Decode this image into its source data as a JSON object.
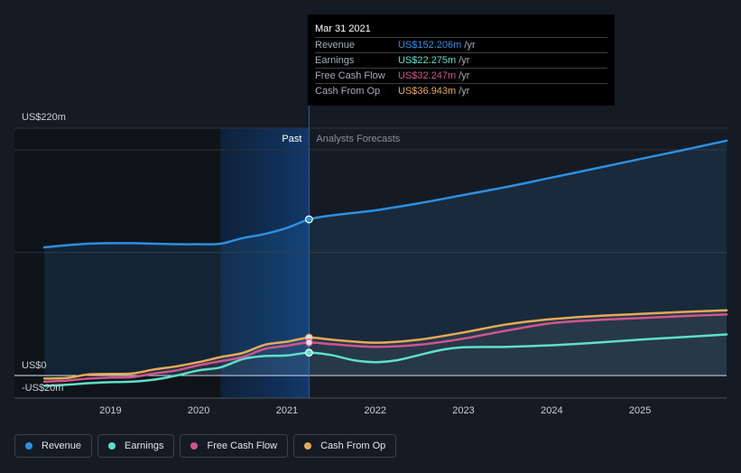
{
  "tooltip": {
    "date": "Mar 31 2021",
    "rows": [
      {
        "label": "Revenue",
        "value": "US$152.206m",
        "unit": "/yr",
        "color": "#2e8fe0"
      },
      {
        "label": "Earnings",
        "value": "US$22.275m",
        "unit": "/yr",
        "color": "#5fe0c8"
      },
      {
        "label": "Free Cash Flow",
        "value": "US$32.247m",
        "unit": "/yr",
        "color": "#d0558c"
      },
      {
        "label": "Cash From Op",
        "value": "US$36.943m",
        "unit": "/yr",
        "color": "#e6a95a"
      }
    ]
  },
  "legend": [
    {
      "label": "Revenue",
      "color": "#2e8fe0"
    },
    {
      "label": "Earnings",
      "color": "#5fe0c8"
    },
    {
      "label": "Free Cash Flow",
      "color": "#d0558c"
    },
    {
      "label": "Cash From Op",
      "color": "#e6a95a"
    }
  ],
  "chart_data": {
    "type": "line",
    "region_labels": {
      "past": "Past",
      "forecast": "Analysts Forecasts"
    },
    "y_tick_labels": [
      {
        "value": 220,
        "label": "US$220m"
      },
      {
        "value": 0,
        "label": "US$0"
      },
      {
        "value": -20,
        "label": "-US$20m"
      }
    ],
    "ylim": [
      -20,
      220
    ],
    "xlim": [
      2018.25,
      2025.98
    ],
    "x_ticks": [
      2019,
      2020,
      2021,
      2022,
      2023,
      2024,
      2025
    ],
    "past_end": 2021.25,
    "highlight_start": 2020.25,
    "grid": true,
    "series": [
      {
        "name": "Revenue",
        "color": "#2e8fe0",
        "fill": true,
        "points": [
          [
            2018.25,
            125
          ],
          [
            2018.5,
            127
          ],
          [
            2018.75,
            128.5
          ],
          [
            2019.0,
            129
          ],
          [
            2019.25,
            129
          ],
          [
            2019.5,
            128.5
          ],
          [
            2019.75,
            128
          ],
          [
            2020.0,
            128
          ],
          [
            2020.25,
            128.5
          ],
          [
            2020.5,
            134
          ],
          [
            2020.75,
            138
          ],
          [
            2021.0,
            144
          ],
          [
            2021.25,
            152.2
          ],
          [
            2021.5,
            156
          ],
          [
            2022.0,
            161
          ],
          [
            2022.5,
            168
          ],
          [
            2023.0,
            176
          ],
          [
            2023.5,
            184
          ],
          [
            2024.0,
            193
          ],
          [
            2024.5,
            202
          ],
          [
            2025.0,
            211
          ],
          [
            2025.5,
            220
          ],
          [
            2025.98,
            229
          ]
        ]
      },
      {
        "name": "Earnings",
        "color": "#5fe0c8",
        "points": [
          [
            2018.25,
            -10
          ],
          [
            2018.5,
            -9
          ],
          [
            2018.75,
            -7.5
          ],
          [
            2019.0,
            -6.5
          ],
          [
            2019.25,
            -6
          ],
          [
            2019.5,
            -4
          ],
          [
            2019.75,
            0
          ],
          [
            2020.0,
            5
          ],
          [
            2020.25,
            8
          ],
          [
            2020.5,
            16
          ],
          [
            2020.75,
            19
          ],
          [
            2021.0,
            19.5
          ],
          [
            2021.25,
            22.3
          ],
          [
            2021.5,
            20
          ],
          [
            2021.75,
            15
          ],
          [
            2022.0,
            13
          ],
          [
            2022.25,
            15
          ],
          [
            2022.5,
            20
          ],
          [
            2022.75,
            25
          ],
          [
            2023.0,
            27.5
          ],
          [
            2023.5,
            28
          ],
          [
            2024.0,
            29.5
          ],
          [
            2024.5,
            32
          ],
          [
            2025.0,
            35
          ],
          [
            2025.5,
            37.5
          ],
          [
            2025.98,
            40
          ]
        ]
      },
      {
        "name": "Free Cash Flow",
        "color": "#d0558c",
        "points": [
          [
            2018.25,
            -6
          ],
          [
            2018.5,
            -5
          ],
          [
            2018.75,
            -3
          ],
          [
            2019.0,
            -2
          ],
          [
            2019.25,
            -1.5
          ],
          [
            2019.5,
            2
          ],
          [
            2019.75,
            5
          ],
          [
            2020.0,
            10
          ],
          [
            2020.25,
            14
          ],
          [
            2020.5,
            18
          ],
          [
            2020.75,
            26
          ],
          [
            2021.0,
            29
          ],
          [
            2021.25,
            32.2
          ],
          [
            2021.5,
            30.5
          ],
          [
            2022.0,
            28
          ],
          [
            2022.5,
            30
          ],
          [
            2023.0,
            36
          ],
          [
            2023.5,
            44
          ],
          [
            2024.0,
            51
          ],
          [
            2024.5,
            54
          ],
          [
            2025.0,
            56
          ],
          [
            2025.5,
            58
          ],
          [
            2025.98,
            59.5
          ]
        ]
      },
      {
        "name": "Cash From Op",
        "color": "#e6a95a",
        "points": [
          [
            2018.25,
            -3
          ],
          [
            2018.5,
            -2.5
          ],
          [
            2018.75,
            1
          ],
          [
            2019.0,
            1.5
          ],
          [
            2019.25,
            2
          ],
          [
            2019.5,
            6
          ],
          [
            2019.75,
            9
          ],
          [
            2020.0,
            13
          ],
          [
            2020.25,
            18
          ],
          [
            2020.5,
            22
          ],
          [
            2020.75,
            30
          ],
          [
            2021.0,
            33
          ],
          [
            2021.25,
            36.9
          ],
          [
            2021.5,
            35
          ],
          [
            2022.0,
            32
          ],
          [
            2022.5,
            35
          ],
          [
            2023.0,
            42
          ],
          [
            2023.5,
            50
          ],
          [
            2024.0,
            55
          ],
          [
            2024.5,
            58
          ],
          [
            2025.0,
            60
          ],
          [
            2025.5,
            62
          ],
          [
            2025.98,
            63.5
          ]
        ]
      }
    ],
    "markers": [
      {
        "series": "Revenue",
        "x": 2021.25,
        "y": 152.206
      },
      {
        "series": "Cash From Op",
        "x": 2021.25,
        "y": 36.943
      },
      {
        "series": "Free Cash Flow",
        "x": 2021.25,
        "y": 32.247
      },
      {
        "series": "Earnings",
        "x": 2021.25,
        "y": 22.275
      }
    ]
  }
}
